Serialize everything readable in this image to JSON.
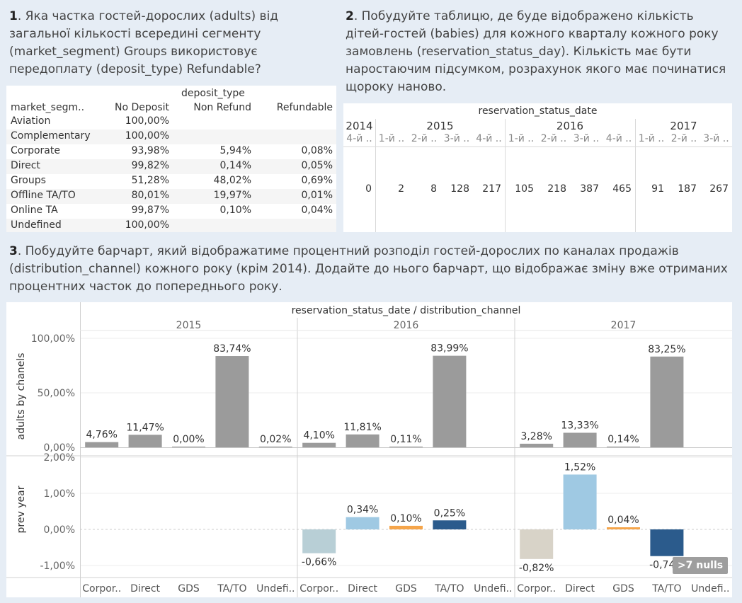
{
  "q1": {
    "num": "1",
    "text": ". Яка частка гостей-дорослих (adults) від загальної кількості всередині сегменту (market_segment) Groups використовує передоплату (deposit_type) Refundable?",
    "header_group": "deposit_type",
    "row_header": "market_segm..",
    "cols": [
      "No Deposit",
      "Non Refund",
      "Refundable"
    ],
    "rows": [
      {
        "name": "Aviation",
        "v": [
          "100,00%",
          "",
          ""
        ]
      },
      {
        "name": "Complementary",
        "v": [
          "100,00%",
          "",
          ""
        ]
      },
      {
        "name": "Corporate",
        "v": [
          "93,98%",
          "5,94%",
          "0,08%"
        ]
      },
      {
        "name": "Direct",
        "v": [
          "99,82%",
          "0,14%",
          "0,05%"
        ]
      },
      {
        "name": "Groups",
        "v": [
          "51,28%",
          "48,02%",
          "0,69%"
        ]
      },
      {
        "name": "Offline TA/TO",
        "v": [
          "80,01%",
          "19,97%",
          "0,01%"
        ]
      },
      {
        "name": "Online TA",
        "v": [
          "99,87%",
          "0,10%",
          "0,04%"
        ]
      },
      {
        "name": "Undefined",
        "v": [
          "100,00%",
          "",
          ""
        ]
      }
    ]
  },
  "q2": {
    "num": "2",
    "text": ". Побудуйте таблицю, де буде відображено кількість дітей-гостей (babies) для кожного кварталу кожного року замовлень (reservation_status_day). Кількість має бути наростаючим підсумком, розрахунок якого має починатися щороку наново.",
    "header": "reservation_status_date",
    "years": [
      "2014",
      "2015",
      "2016",
      "2017"
    ],
    "quarters": [
      "4-й ..",
      "1-й ..",
      "2-й ..",
      "3-й ..",
      "4-й ..",
      "1-й ..",
      "2-й ..",
      "3-й ..",
      "4-й ..",
      "1-й ..",
      "2-й ..",
      "3-й .."
    ],
    "values": [
      "0",
      "2",
      "8",
      "128",
      "217",
      "105",
      "218",
      "387",
      "465",
      "91",
      "187",
      "267"
    ]
  },
  "q3": {
    "num": "3",
    "text": ". Побудуйте барчарт, який відображатиме процентний розподіл гостей-дорослих по каналах продажів (distribution_channel) кожного року (крім 2014). Додайте до нього барчарт, що відображає зміну вже отриманих процентних часток до попереднього року.",
    "nulls_badge": ">7 nulls"
  },
  "chart_data": {
    "type": "bar",
    "title": "reservation_status_date / distribution_channel",
    "years": [
      "2015",
      "2016",
      "2017"
    ],
    "categories": [
      "Corpor..",
      "Direct",
      "GDS",
      "TA/TO",
      "Undefi.."
    ],
    "top": {
      "ylabel": "adults by chanels",
      "yticks": [
        "100,00%",
        "50,00%",
        "0,00%"
      ],
      "ylim": [
        0,
        100
      ],
      "color": "#9b9b9b",
      "values": [
        [
          4.76,
          11.47,
          0.0,
          83.74,
          0.02
        ],
        [
          4.1,
          11.81,
          0.11,
          83.99,
          null
        ],
        [
          3.28,
          13.33,
          0.14,
          83.25,
          null
        ]
      ],
      "labels": [
        [
          "4,76%",
          "11,47%",
          "0,00%",
          "83,74%",
          "0,02%"
        ],
        [
          "4,10%",
          "11,81%",
          "0,11%",
          "83,99%",
          ""
        ],
        [
          "3,28%",
          "13,33%",
          "0,14%",
          "83,25%",
          ""
        ]
      ]
    },
    "bottom": {
      "ylabel": "prev year",
      "yticks": [
        "2,00%",
        "1,00%",
        "0,00%",
        "-1,00%"
      ],
      "ylim": [
        -1.0,
        2.0
      ],
      "colors": [
        "#b8cfd6",
        "#9fc9e3",
        "#f5a54a",
        "#2b5b8c",
        "#cccccc"
      ],
      "colors_2017": [
        "#d8d3c8",
        "#9fc9e3",
        "#f5a54a",
        "#2b5b8c",
        "#cccccc"
      ],
      "values": [
        [
          null,
          null,
          null,
          null,
          null
        ],
        [
          -0.66,
          0.34,
          0.1,
          0.25,
          null
        ],
        [
          -0.82,
          1.52,
          0.04,
          -0.74,
          null
        ]
      ],
      "labels": [
        [
          "",
          "",
          "",
          "",
          ""
        ],
        [
          "-0,66%",
          "0,34%",
          "0,10%",
          "0,25%",
          ""
        ],
        [
          "-0,82%",
          "1,52%",
          "0,04%",
          "-0,74%",
          ""
        ]
      ]
    }
  }
}
